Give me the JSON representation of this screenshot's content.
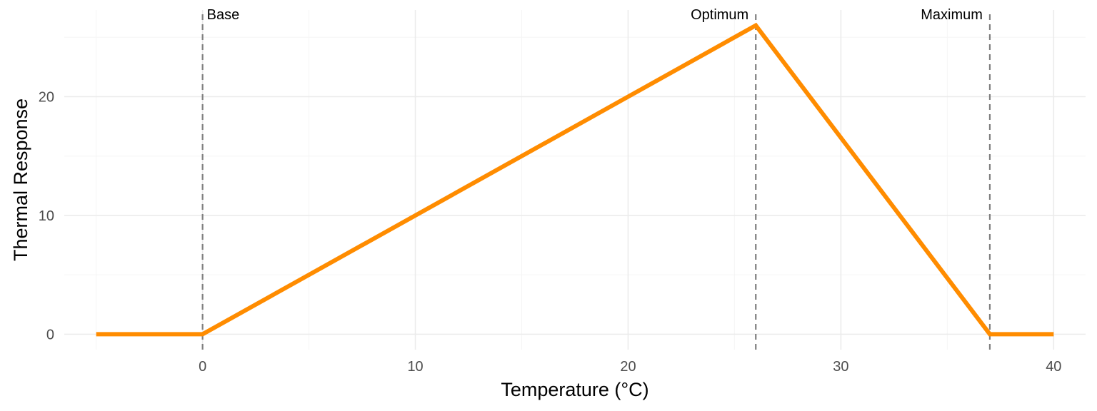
{
  "chart_data": {
    "type": "line",
    "title": "",
    "xlabel": "Temperature (°C)",
    "ylabel": "Thermal Response",
    "xlim": [
      -6.5,
      41.5
    ],
    "ylim": [
      -1.3,
      27.3
    ],
    "x_ticks": [
      0,
      10,
      20,
      30,
      40
    ],
    "y_ticks": [
      0,
      10,
      20
    ],
    "x_minor_ticks": [
      -5,
      5,
      15,
      25,
      35
    ],
    "y_minor_ticks": [
      5,
      15,
      25
    ],
    "grid": true,
    "series": [
      {
        "color": "#ff8c00",
        "points": [
          [
            -5,
            0
          ],
          [
            0,
            0
          ],
          [
            26,
            26
          ],
          [
            37,
            0
          ],
          [
            40,
            0
          ]
        ]
      }
    ],
    "reference_lines": [
      {
        "x": 0,
        "label": "Base",
        "align": "start"
      },
      {
        "x": 26,
        "label": "Optimum",
        "align": "end"
      },
      {
        "x": 37,
        "label": "Maximum",
        "align": "end"
      }
    ],
    "colors": {
      "line": "#ff8c00",
      "reference_line": "#7f7f7f",
      "grid_major": "#ebebeb",
      "grid_minor": "#f5f5f5"
    }
  }
}
